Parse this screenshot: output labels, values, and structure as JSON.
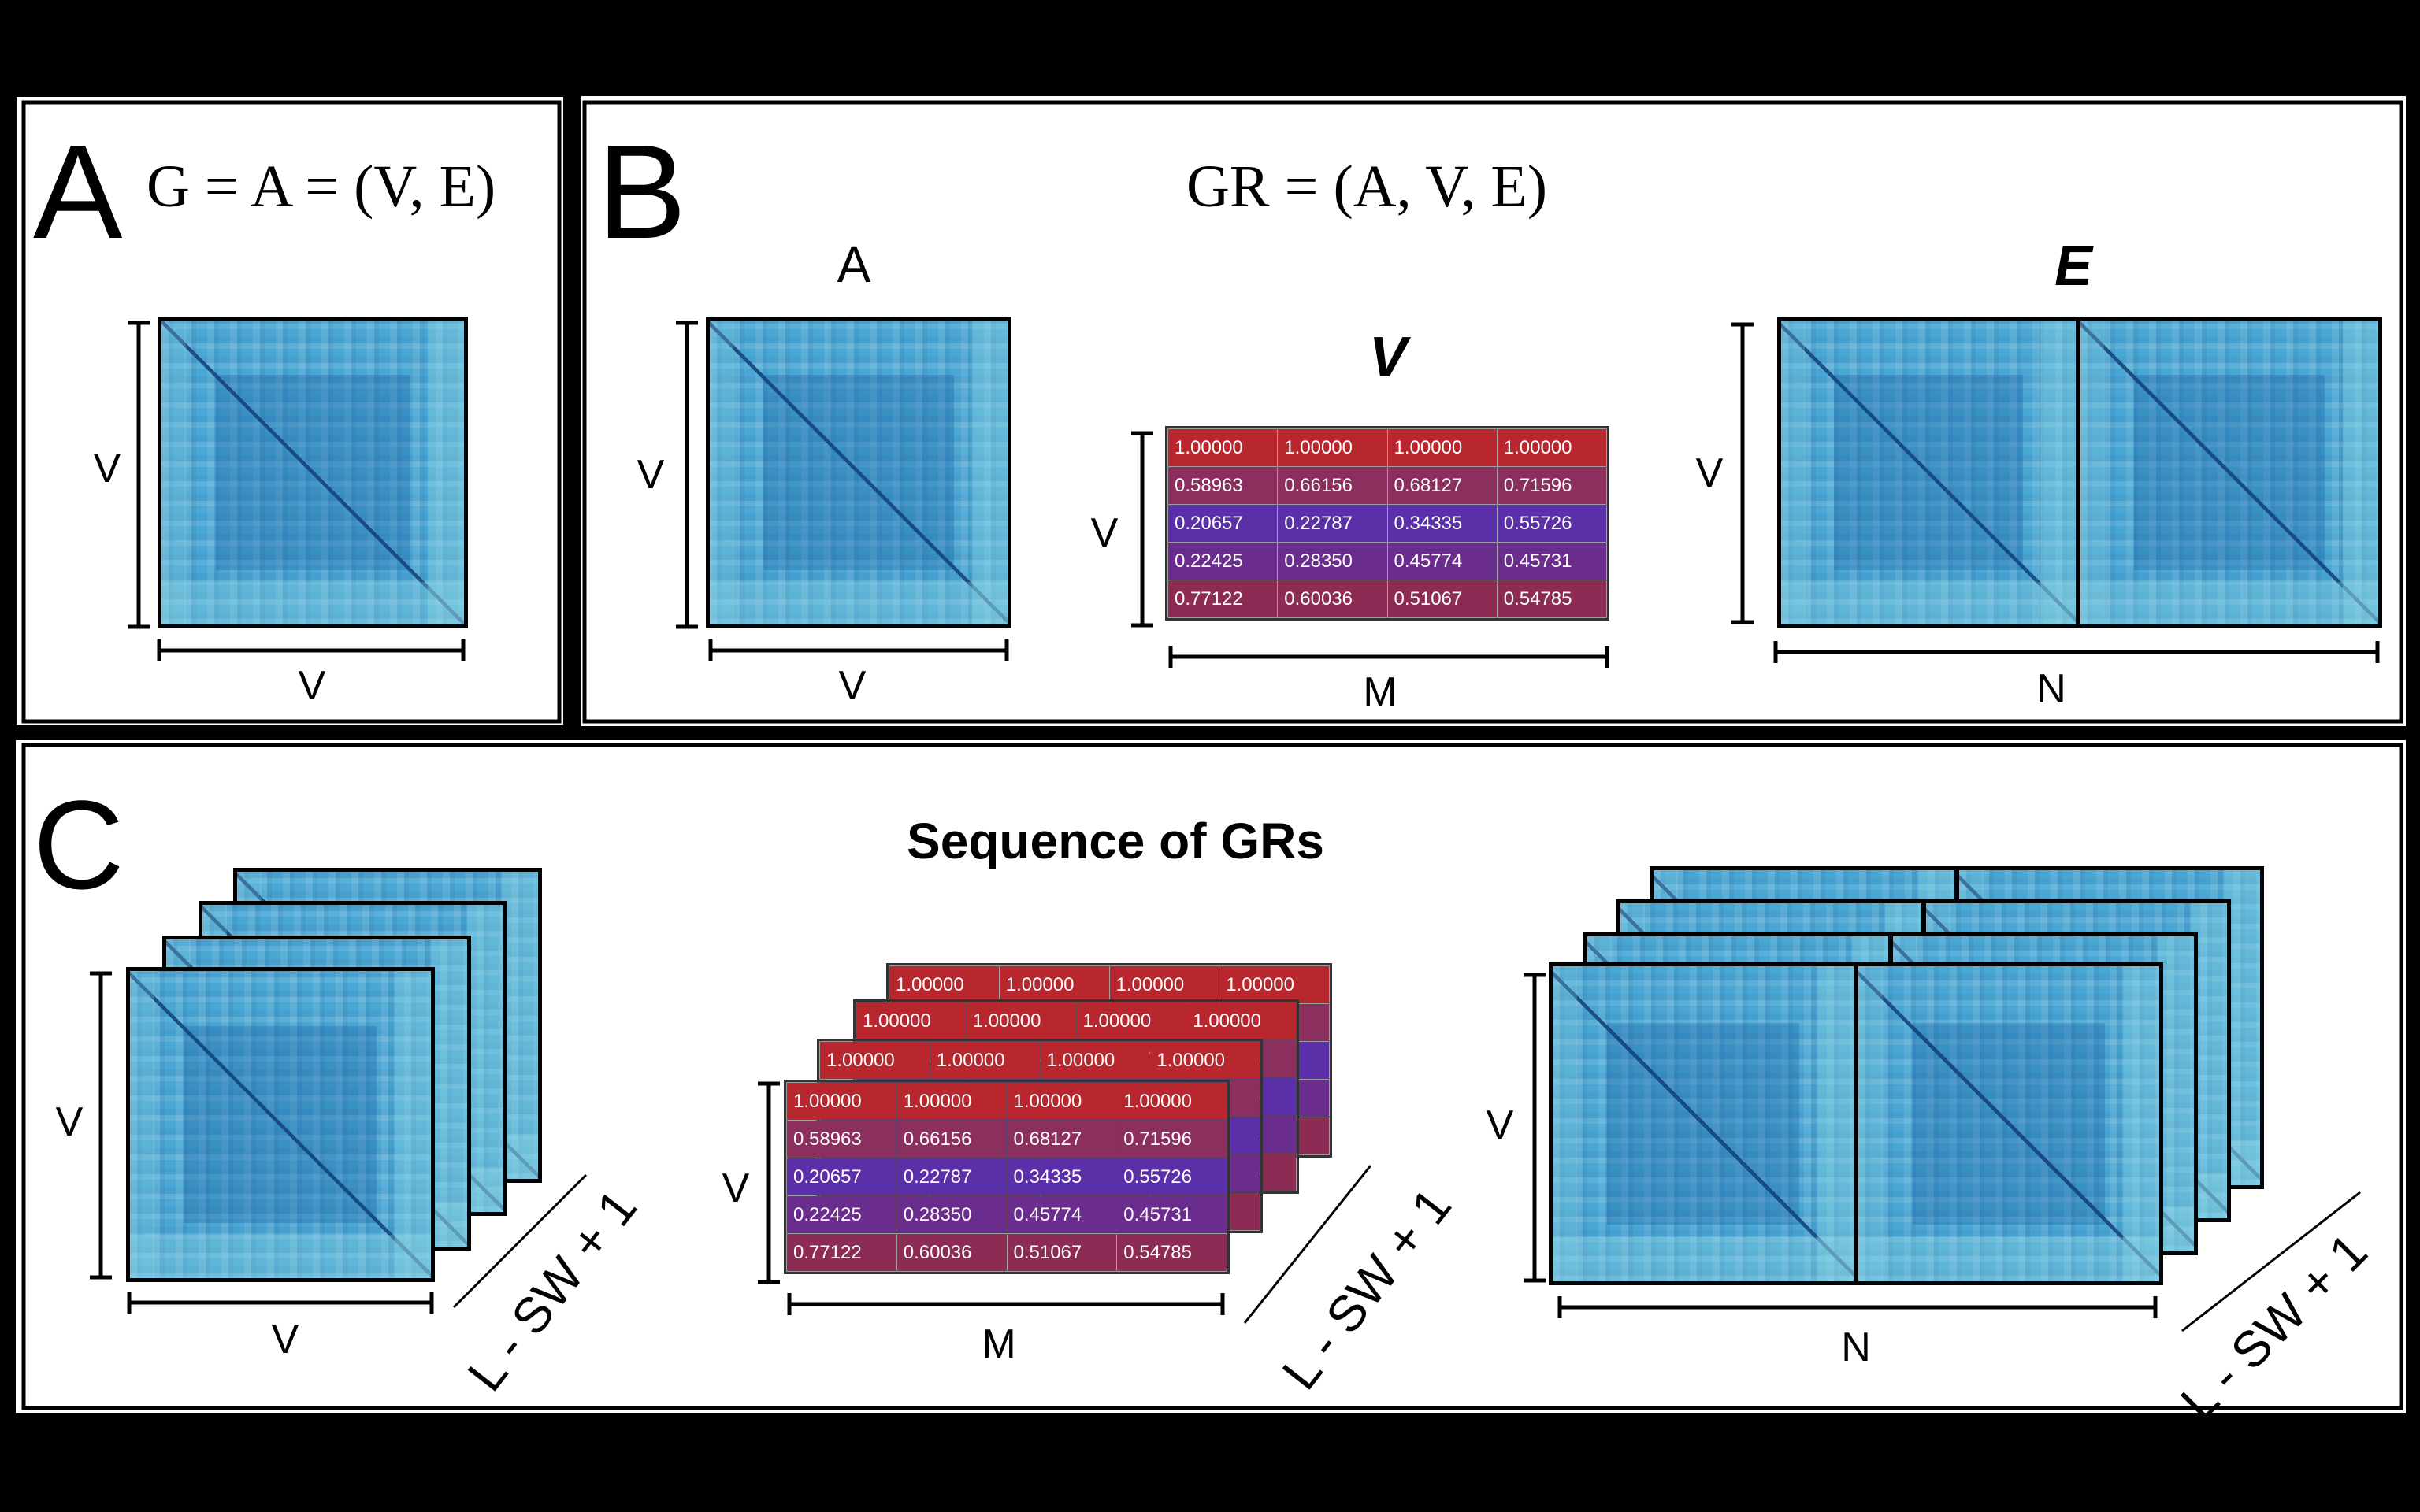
{
  "panels": {
    "a": {
      "letter": "A",
      "formula": "G = A = (V, E)",
      "v_label_left": "V",
      "v_label_bottom": "V"
    },
    "b": {
      "letter": "B",
      "formula": "GR = (A, V, E)",
      "a_title": "A",
      "v_title": "V",
      "e_title": "E",
      "a_v_left": "V",
      "a_v_bottom": "V",
      "v_v_left": "V",
      "v_m_bottom": "M",
      "e_v_left": "V",
      "e_n_bottom": "N"
    },
    "c": {
      "letter": "C",
      "title": "Sequence of GRs",
      "a_v_left": "V",
      "a_v_bottom": "V",
      "v_v_left": "V",
      "v_m_bottom": "M",
      "e_v_left": "V",
      "e_n_bottom": "N",
      "stack_label": "L - SW + 1"
    }
  },
  "feature_matrix": {
    "rows": [
      [
        "1.00000",
        "1.00000",
        "1.00000",
        "1.00000"
      ],
      [
        "0.58963",
        "0.66156",
        "0.68127",
        "0.71596"
      ],
      [
        "0.20657",
        "0.22787",
        "0.34335",
        "0.55726"
      ],
      [
        "0.22425",
        "0.28350",
        "0.45774",
        "0.45731"
      ],
      [
        "0.77122",
        "0.60036",
        "0.51067",
        "0.54785"
      ]
    ],
    "row_colors": [
      "#b8262e",
      "#8a2f5e",
      "#5a2fa8",
      "#6a2d8e",
      "#8c2c55"
    ]
  },
  "colors": {
    "heatmap_base": "#4aa6d2",
    "diagonal": "#1b4f84",
    "background": "#000000",
    "panel_bg": "#ffffff"
  }
}
